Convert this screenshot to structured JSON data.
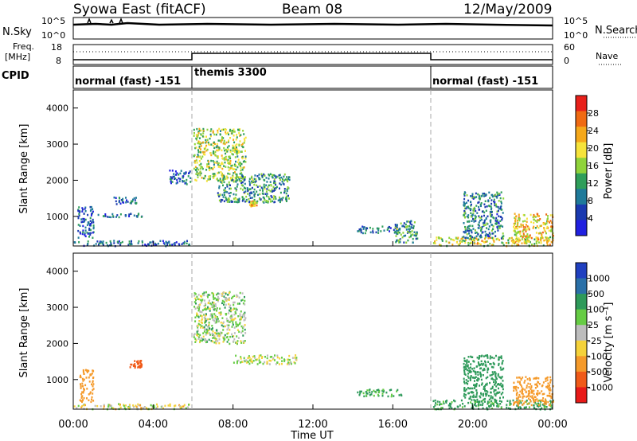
{
  "header": {
    "station": "Syowa East (fitACF)",
    "beam": "Beam 08",
    "date": "12/May/2009"
  },
  "status_panel": {
    "nsky_label": "N.Sky",
    "nsky_ticks": [
      "10^5",
      "10^0"
    ],
    "nsearch_label": "N.Search",
    "nsearch_ticks": [
      "10^5",
      "10^0"
    ],
    "freq_label_line1": "Freq.",
    "freq_label_line2": "[MHz]",
    "freq_ticks": [
      "18",
      "8"
    ],
    "nave_label": "Nave",
    "nave_ticks": [
      "60",
      "0"
    ],
    "cpid_label": "CPID",
    "cpid_segments": [
      {
        "label": "normal (fast) -151",
        "start_h": 0,
        "end_h": 6
      },
      {
        "label": "themis 3300",
        "start_h": 6,
        "end_h": 18
      },
      {
        "label": "normal (fast) -151",
        "start_h": 18,
        "end_h": 24
      }
    ]
  },
  "axes": {
    "x_ticks": [
      "00:00",
      "04:00",
      "08:00",
      "12:00",
      "16:00",
      "20:00",
      "00:00"
    ],
    "x_label": "Time UT",
    "y_label": "Slant Range [km]",
    "y_ticks": [
      "4000",
      "3000",
      "2000",
      "1000"
    ]
  },
  "colorbars": {
    "power": {
      "label": "Power [dB]",
      "ticks": [
        "28",
        "24",
        "20",
        "16",
        "12",
        "8",
        "4"
      ],
      "colors": [
        "#e8201a",
        "#f06a12",
        "#f5a81a",
        "#f6e33a",
        "#8fd33a",
        "#2e9e5a",
        "#1f7a9a",
        "#1a3ab0",
        "#2020e0"
      ]
    },
    "velocity": {
      "label": "Velocity [m s⁻¹]",
      "ticks": [
        "1000",
        "500",
        "100",
        "25",
        "-25",
        "-100",
        "-500",
        "-1000"
      ],
      "colors": [
        "#2040c0",
        "#2a70a8",
        "#2e9a5a",
        "#66cc44",
        "#bdbdbd",
        "#f5d23a",
        "#f59a2a",
        "#f05a18",
        "#e81a18"
      ]
    }
  },
  "chart_data": [
    {
      "type": "heatmap",
      "title": "Power",
      "xlabel": "Time UT",
      "ylabel": "Slant Range [km]",
      "xlim": [
        0,
        24
      ],
      "ylim": [
        180,
        4500
      ],
      "units": "dB",
      "colorbar_range": [
        0,
        30
      ],
      "regions": [
        {
          "t0": 0.0,
          "t1": 5.8,
          "r0": 200,
          "r1": 350,
          "level": 6
        },
        {
          "t0": 0.2,
          "t1": 1.0,
          "r0": 400,
          "r1": 1300,
          "level": 6
        },
        {
          "t0": 1.2,
          "t1": 3.4,
          "r0": 1000,
          "r1": 1100,
          "level": 6
        },
        {
          "t0": 2.0,
          "t1": 3.2,
          "r0": 1350,
          "r1": 1550,
          "level": 6
        },
        {
          "t0": 4.8,
          "t1": 5.9,
          "r0": 1900,
          "r1": 2300,
          "level": 6
        },
        {
          "t0": 6.0,
          "t1": 8.6,
          "r0": 2000,
          "r1": 3450,
          "level": 16
        },
        {
          "t0": 7.2,
          "t1": 10.8,
          "r0": 1400,
          "r1": 2200,
          "level": 10
        },
        {
          "t0": 8.8,
          "t1": 9.2,
          "r0": 1300,
          "r1": 1450,
          "level": 20
        },
        {
          "t0": 14.2,
          "t1": 16.4,
          "r0": 550,
          "r1": 750,
          "level": 6
        },
        {
          "t0": 16.0,
          "t1": 17.2,
          "r0": 300,
          "r1": 900,
          "level": 10
        },
        {
          "t0": 18.0,
          "t1": 24.0,
          "r0": 200,
          "r1": 450,
          "level": 18
        },
        {
          "t0": 19.5,
          "t1": 21.5,
          "r0": 400,
          "r1": 1700,
          "level": 8
        },
        {
          "t0": 22.0,
          "t1": 24.0,
          "r0": 300,
          "r1": 1100,
          "level": 20
        }
      ]
    },
    {
      "type": "heatmap",
      "title": "Velocity",
      "xlabel": "Time UT",
      "ylabel": "Slant Range [km]",
      "xlim": [
        0,
        24
      ],
      "ylim": [
        180,
        4500
      ],
      "units": "m s-1",
      "regions": [
        {
          "t0": 0.0,
          "t1": 5.8,
          "r0": 200,
          "r1": 350,
          "level": -30
        },
        {
          "t0": 0.3,
          "t1": 1.0,
          "r0": 400,
          "r1": 1300,
          "level": -200
        },
        {
          "t0": 2.8,
          "t1": 3.4,
          "r0": 1350,
          "r1": 1550,
          "level": -600
        },
        {
          "t0": 6.0,
          "t1": 8.6,
          "r0": 2000,
          "r1": 3450,
          "level": 30
        },
        {
          "t0": 8.0,
          "t1": 11.2,
          "r0": 1450,
          "r1": 1700,
          "level": 0
        },
        {
          "t0": 14.2,
          "t1": 16.4,
          "r0": 550,
          "r1": 750,
          "level": 150
        },
        {
          "t0": 18.0,
          "t1": 24.0,
          "r0": 200,
          "r1": 450,
          "level": 150
        },
        {
          "t0": 19.5,
          "t1": 21.5,
          "r0": 400,
          "r1": 1700,
          "level": 200
        },
        {
          "t0": 22.0,
          "t1": 24.0,
          "r0": 300,
          "r1": 1100,
          "level": -300
        }
      ]
    }
  ]
}
